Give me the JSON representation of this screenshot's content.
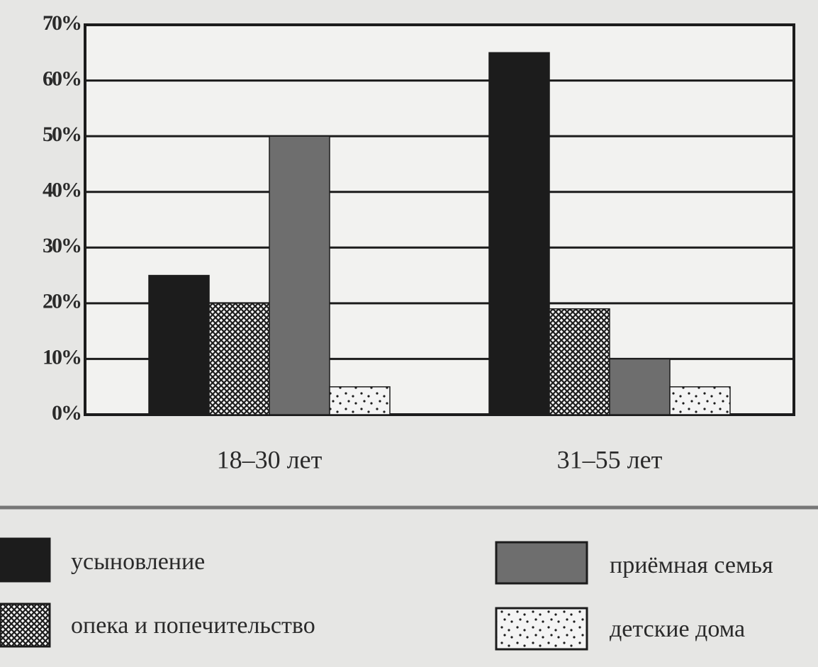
{
  "chart_data": {
    "type": "bar",
    "categories": [
      "18–30 лет",
      "31–55 лет"
    ],
    "series": [
      {
        "name": "усыновление",
        "color": "#1c1c1c",
        "values": [
          25,
          65
        ]
      },
      {
        "name": "опека и попечительство",
        "color": "#1c1c1c",
        "pattern": "crosshatch",
        "values": [
          20,
          19
        ]
      },
      {
        "name": "приёмная семья",
        "color": "#6e6e6e",
        "values": [
          50,
          10
        ]
      },
      {
        "name": "детские дома",
        "color": "#1c1c1c",
        "pattern": "dots",
        "values": [
          5,
          5
        ]
      }
    ],
    "ylim": [
      0,
      70
    ],
    "yticks": [
      {
        "value": 0,
        "label": "0%"
      },
      {
        "value": 10,
        "label": "10%"
      },
      {
        "value": 20,
        "label": "20%"
      },
      {
        "value": 30,
        "label": "30%"
      },
      {
        "value": 40,
        "label": "40%"
      },
      {
        "value": 50,
        "label": "50%"
      },
      {
        "value": 60,
        "label": "60%"
      },
      {
        "value": 70,
        "label": "70%"
      }
    ],
    "grid": true
  }
}
